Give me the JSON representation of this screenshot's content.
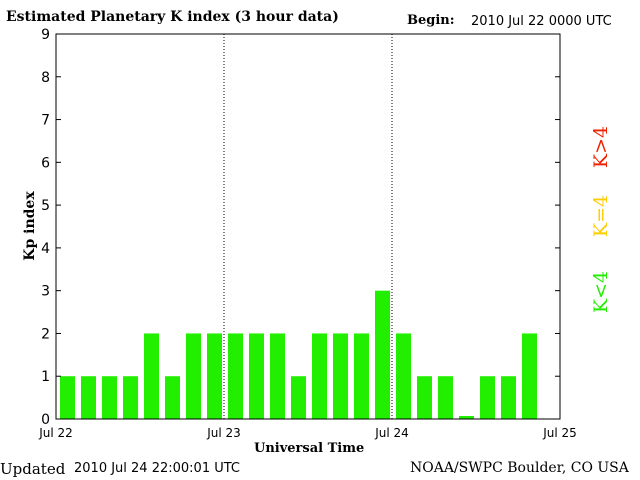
{
  "header": {
    "title": "Estimated Planetary K index (3 hour data)",
    "begin_label": "Begin:",
    "begin_value": "2010 Jul 22 0000 UTC"
  },
  "footer": {
    "updated_label": "Updated",
    "updated_value": "2010 Jul 24 22:00:01 UTC",
    "credit": "NOAA/SWPC Boulder, CO USA"
  },
  "legend": {
    "low": "K<4",
    "equal": "K=4",
    "high": "K>4",
    "colors": {
      "low": "#22ee00",
      "equal": "#ffcc00",
      "high": "#ee2200"
    }
  },
  "chart_data": {
    "type": "bar",
    "title": "Estimated Planetary K index (3 hour data)",
    "xlabel": "Universal Time",
    "ylabel": "Kp index",
    "ylim": [
      0,
      9
    ],
    "yticks": [
      0,
      1,
      2,
      3,
      4,
      5,
      6,
      7,
      8,
      9
    ],
    "xticks": [
      "Jul 22",
      "Jul 23",
      "Jul 24",
      "Jul 25"
    ],
    "day_dividers": [
      "Jul 23",
      "Jul 24"
    ],
    "interval_hours": 3,
    "values": [
      1,
      1,
      1,
      1,
      2,
      1,
      2,
      2,
      2,
      2,
      2,
      1,
      2,
      2,
      2,
      3,
      2,
      1,
      1,
      0.07,
      1,
      1,
      2
    ],
    "bar_color": "#22ee00"
  }
}
